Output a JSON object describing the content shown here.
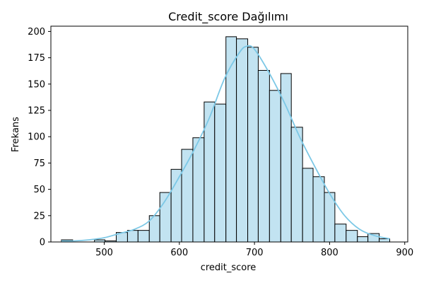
{
  "chart_data": {
    "type": "histogram",
    "title": "Credit_score Dağılımı",
    "xlabel": "credit_score",
    "ylabel": "Frekans",
    "xlim": [
      429,
      904
    ],
    "ylim": [
      0,
      205
    ],
    "xticks": [
      500,
      600,
      700,
      800,
      900
    ],
    "yticks": [
      0,
      25,
      50,
      75,
      100,
      125,
      150,
      175,
      200
    ],
    "bin_edges": [
      443,
      458,
      472,
      487,
      501,
      516,
      531,
      545,
      560,
      574,
      589,
      603,
      618,
      633,
      647,
      662,
      676,
      691,
      705,
      720,
      735,
      749,
      764,
      778,
      793,
      807,
      822,
      837,
      851,
      866,
      880
    ],
    "counts": [
      2,
      0,
      0,
      2,
      1,
      9,
      11,
      11,
      25,
      47,
      69,
      88,
      99,
      133,
      131,
      195,
      193,
      185,
      163,
      144,
      160,
      109,
      70,
      62,
      47,
      17,
      11,
      5,
      8,
      3
    ],
    "kde": {
      "x": [
        443,
        460,
        480,
        500,
        520,
        540,
        560,
        580,
        600,
        620,
        640,
        660,
        680,
        690,
        700,
        720,
        740,
        760,
        780,
        800,
        820,
        840,
        860,
        880
      ],
      "y": [
        1,
        1,
        2,
        4,
        8,
        12,
        20,
        38,
        62,
        88,
        118,
        155,
        180,
        186,
        183,
        160,
        132,
        100,
        72,
        46,
        25,
        12,
        6,
        3
      ]
    },
    "colors": {
      "bar_fill": "#c2e3f1",
      "bar_edge": "#000000",
      "kde_line": "#7cc8e6"
    },
    "grid": false
  }
}
